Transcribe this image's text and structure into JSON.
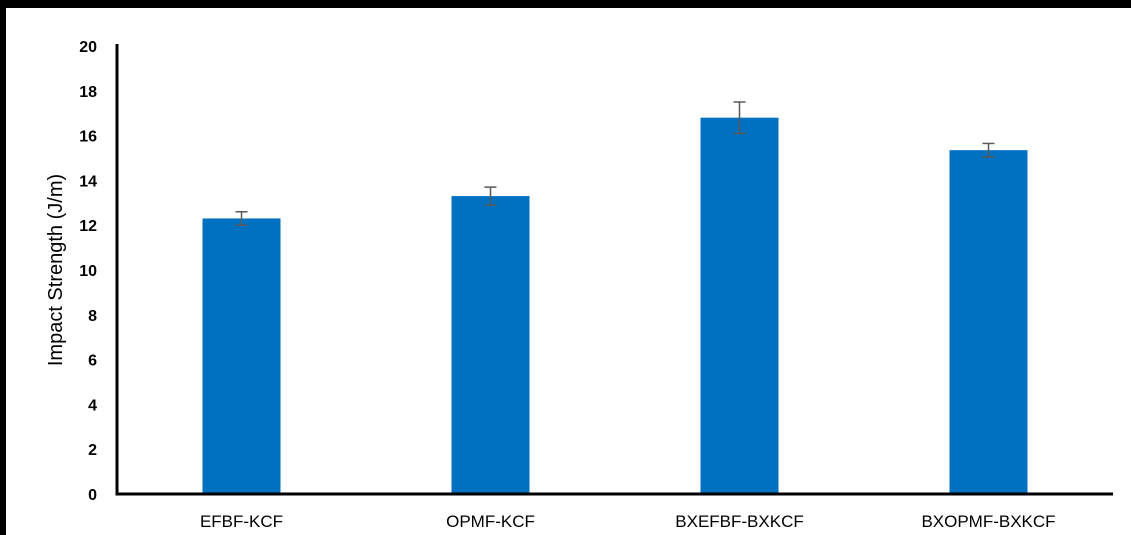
{
  "chart_data": {
    "type": "bar",
    "title": "",
    "xlabel": "",
    "ylabel": "Impact Strength (J/m)",
    "ylim": [
      0,
      20
    ],
    "yticks": [
      0,
      2,
      4,
      6,
      8,
      10,
      12,
      14,
      16,
      18,
      20
    ],
    "grid": false,
    "legend": "none",
    "categories": [
      "EFBF-KCF",
      "OPMF-KCF",
      "BXEFBF-BXKCF",
      "BXOPMF-BXKCF"
    ],
    "values": [
      12.3,
      13.3,
      16.8,
      15.35
    ],
    "error": [
      0.3,
      0.4,
      0.7,
      0.3
    ],
    "bar_color": "#0070C0",
    "error_color": "#595959"
  }
}
